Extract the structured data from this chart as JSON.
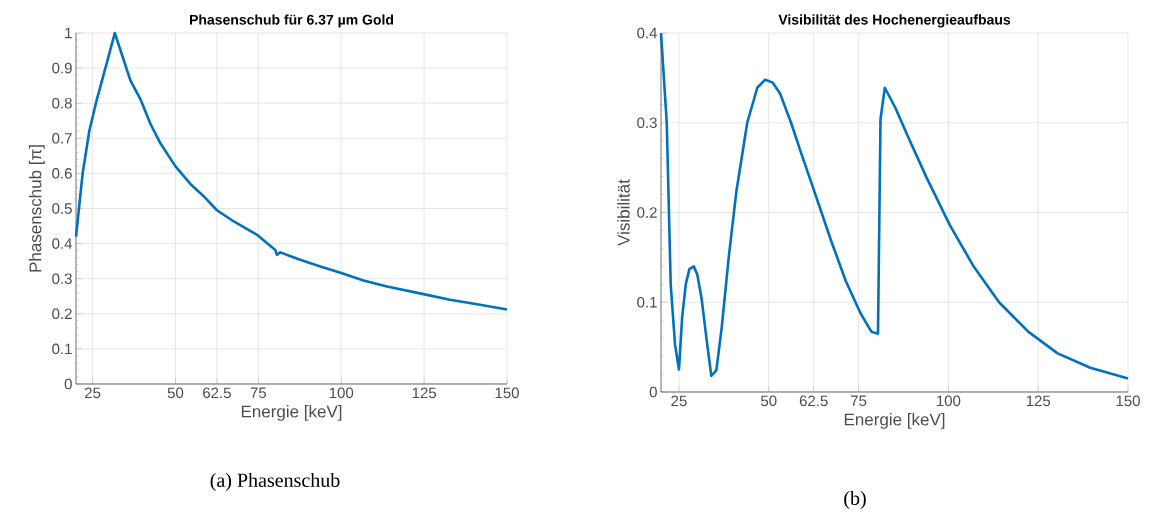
{
  "chart_data": [
    {
      "type": "line",
      "title": "Phasenschub für 6.37 µm Gold",
      "xlabel": "Energie [keV]",
      "ylabel": "Phasenschub [π]",
      "annotations": [
        "(a) Phasenschub"
      ],
      "grid": true,
      "xlim": [
        20,
        150
      ],
      "ylim": [
        0,
        1
      ],
      "xticks": [
        25,
        50,
        62.5,
        75,
        100,
        125,
        150
      ],
      "yticks": [
        0,
        0.1,
        0.2,
        0.3,
        0.4,
        0.5,
        0.6,
        0.7,
        0.8,
        0.9,
        1
      ],
      "series": [
        {
          "color": "#0072bd",
          "x": [
            20,
            22,
            24,
            26,
            28,
            30,
            31.7,
            36.4,
            39.5,
            42.5,
            45.5,
            50,
            54.5,
            58.5,
            62.5,
            67.6,
            74.6,
            80.1,
            80.6,
            81.6,
            87.6,
            93.7,
            100,
            106.7,
            113.8,
            124.8,
            132.8,
            141.9,
            150
          ],
          "values": [
            0.42,
            0.6,
            0.72,
            0.8,
            0.87,
            0.94,
            1.0,
            0.865,
            0.81,
            0.74,
            0.685,
            0.62,
            0.57,
            0.535,
            0.495,
            0.463,
            0.425,
            0.382,
            0.368,
            0.375,
            0.354,
            0.335,
            0.316,
            0.295,
            0.278,
            0.256,
            0.24,
            0.226,
            0.212
          ]
        }
      ]
    },
    {
      "type": "line",
      "title": "Visibilität des Hochenergieaufbaus",
      "xlabel": "Energie [keV]",
      "ylabel": "Visibilität",
      "annotations": [
        "(b)"
      ],
      "grid": true,
      "xlim": [
        20,
        150
      ],
      "ylim": [
        0,
        0.4
      ],
      "xticks": [
        25,
        50,
        62.5,
        75,
        100,
        125,
        150
      ],
      "yticks": [
        0,
        0.1,
        0.2,
        0.3,
        0.4
      ],
      "series": [
        {
          "color": "#0072bd",
          "x": [
            20,
            21.6,
            22.7,
            23.9,
            25,
            25.9,
            26.9,
            27.9,
            29.1,
            30.1,
            31.3,
            32.8,
            34.0,
            35.4,
            36.9,
            38.9,
            41,
            44,
            46.8,
            49,
            51,
            53.1,
            56.2,
            59.2,
            62.3,
            67.4,
            71.4,
            75.5,
            78.6,
            80.4,
            81.1,
            82.3,
            85.2,
            88.7,
            93.8,
            100.4,
            107,
            114.1,
            122.3,
            130.4,
            139.5,
            150
          ],
          "values": [
            0.4,
            0.3,
            0.12,
            0.053,
            0.025,
            0.084,
            0.12,
            0.137,
            0.14,
            0.131,
            0.104,
            0.055,
            0.018,
            0.024,
            0.072,
            0.152,
            0.224,
            0.3,
            0.339,
            0.348,
            0.345,
            0.333,
            0.3,
            0.264,
            0.228,
            0.168,
            0.124,
            0.088,
            0.067,
            0.065,
            0.304,
            0.339,
            0.317,
            0.285,
            0.24,
            0.186,
            0.14,
            0.1,
            0.067,
            0.043,
            0.027,
            0.015
          ]
        }
      ]
    }
  ]
}
